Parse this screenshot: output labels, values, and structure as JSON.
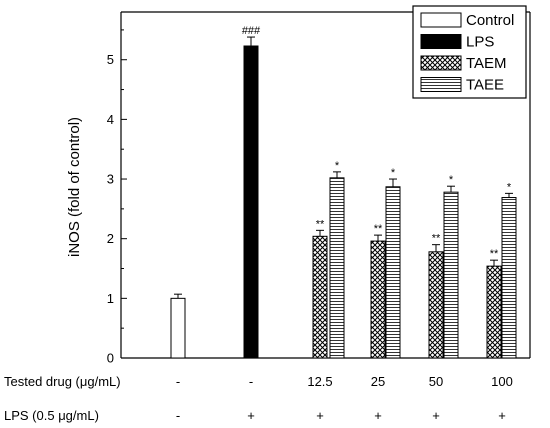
{
  "chart_data": {
    "type": "bar",
    "title": "",
    "xlabel": "",
    "ylabel": "iNOS (fold of control)",
    "ylim": [
      0,
      5.8
    ],
    "yticks": [
      0,
      1,
      2,
      3,
      4,
      5
    ],
    "grid": false,
    "legend_position": "top-right",
    "series": [
      {
        "name": "Control",
        "pattern": "white",
        "color": "#ffffff"
      },
      {
        "name": "LPS",
        "pattern": "black",
        "color": "#000000"
      },
      {
        "name": "TAEM",
        "pattern": "crosshatch",
        "color": "#888888"
      },
      {
        "name": "TAEE",
        "pattern": "horizontal-lines",
        "color": "#ffffff"
      }
    ],
    "groups": [
      {
        "drug": "-",
        "lps": "-",
        "bars": [
          {
            "series": 0,
            "value": 1.0,
            "error": 0.07,
            "label": ""
          }
        ]
      },
      {
        "drug": "-",
        "lps": "+",
        "bars": [
          {
            "series": 1,
            "value": 5.23,
            "error": 0.15,
            "label": "###"
          }
        ]
      },
      {
        "drug": "12.5",
        "lps": "+",
        "bars": [
          {
            "series": 2,
            "value": 2.04,
            "error": 0.1,
            "label": "**"
          },
          {
            "series": 3,
            "value": 3.02,
            "error": 0.1,
            "label": "*"
          }
        ]
      },
      {
        "drug": "25",
        "lps": "+",
        "bars": [
          {
            "series": 2,
            "value": 1.96,
            "error": 0.1,
            "label": "**"
          },
          {
            "series": 3,
            "value": 2.87,
            "error": 0.13,
            "label": "*"
          }
        ]
      },
      {
        "drug": "50",
        "lps": "+",
        "bars": [
          {
            "series": 2,
            "value": 1.78,
            "error": 0.12,
            "label": "**"
          },
          {
            "series": 3,
            "value": 2.78,
            "error": 0.1,
            "label": "*"
          }
        ]
      },
      {
        "drug": "100",
        "lps": "+",
        "bars": [
          {
            "series": 2,
            "value": 1.54,
            "error": 0.1,
            "label": "**"
          },
          {
            "series": 3,
            "value": 2.69,
            "error": 0.07,
            "label": "*"
          }
        ]
      }
    ],
    "rows": {
      "drug_label": "Tested drug (μg/mL)",
      "lps_label": "LPS (0.5 μg/mL)"
    }
  }
}
